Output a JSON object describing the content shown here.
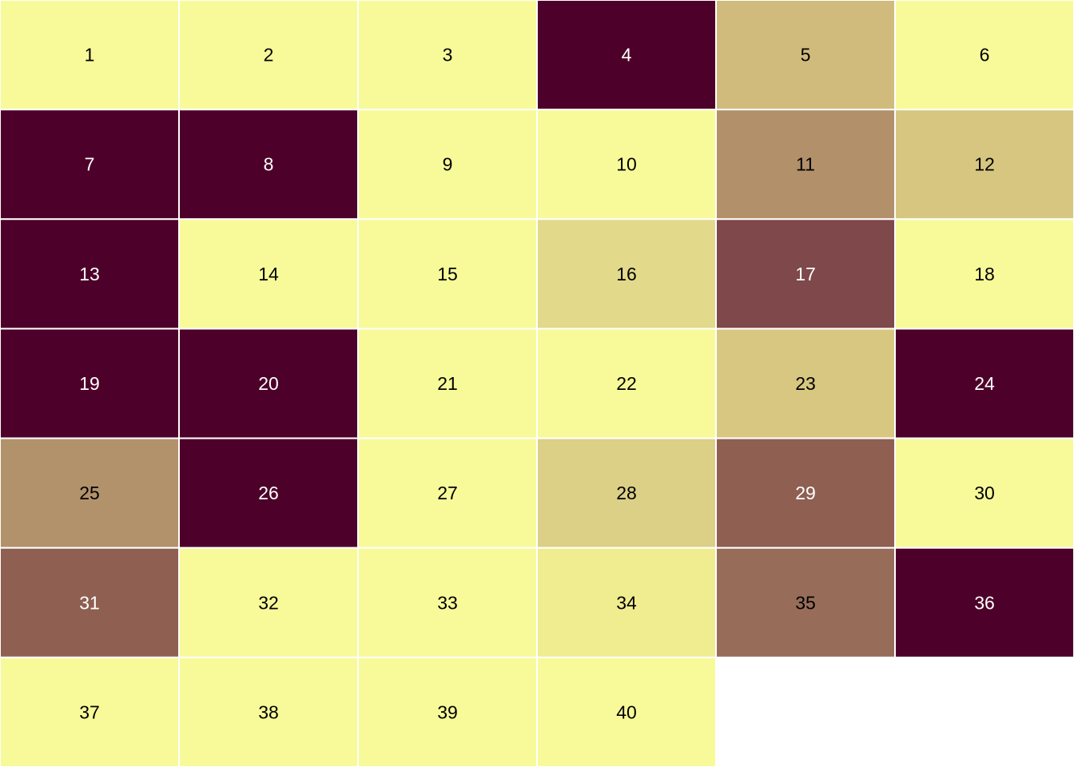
{
  "chart_data": {
    "type": "heatmap",
    "columns": 6,
    "colors": {
      "light": "#f8fa99",
      "dark": "#4d0029",
      "text_light": "#ffffff",
      "text_dark": "#000000",
      "grid_line": "#ffffff"
    },
    "cells": [
      {
        "label": "1",
        "color": "#f8fa99"
      },
      {
        "label": "2",
        "color": "#f8fa99"
      },
      {
        "label": "3",
        "color": "#f8fa99"
      },
      {
        "label": "4",
        "color": "#4d0029"
      },
      {
        "label": "5",
        "color": "#d0bb7c"
      },
      {
        "label": "6",
        "color": "#f8fa99"
      },
      {
        "label": "7",
        "color": "#4d0029"
      },
      {
        "label": "8",
        "color": "#4d0029"
      },
      {
        "label": "9",
        "color": "#f8fa99"
      },
      {
        "label": "10",
        "color": "#f8fa99"
      },
      {
        "label": "11",
        "color": "#b2906a"
      },
      {
        "label": "12",
        "color": "#d6c680"
      },
      {
        "label": "13",
        "color": "#4d0029"
      },
      {
        "label": "14",
        "color": "#f8fa99"
      },
      {
        "label": "15",
        "color": "#f8fa99"
      },
      {
        "label": "16",
        "color": "#e2d98a"
      },
      {
        "label": "17",
        "color": "#7f484a"
      },
      {
        "label": "18",
        "color": "#f8fa99"
      },
      {
        "label": "19",
        "color": "#4d0029"
      },
      {
        "label": "20",
        "color": "#4d0029"
      },
      {
        "label": "21",
        "color": "#f8fa99"
      },
      {
        "label": "22",
        "color": "#f8fa99"
      },
      {
        "label": "23",
        "color": "#d8c781"
      },
      {
        "label": "24",
        "color": "#4d0029"
      },
      {
        "label": "25",
        "color": "#b2926b"
      },
      {
        "label": "26",
        "color": "#4d0029"
      },
      {
        "label": "27",
        "color": "#f8fa99"
      },
      {
        "label": "28",
        "color": "#dccf86"
      },
      {
        "label": "29",
        "color": "#8f5f52"
      },
      {
        "label": "30",
        "color": "#f8fa99"
      },
      {
        "label": "31",
        "color": "#8f5f52"
      },
      {
        "label": "32",
        "color": "#f8fa99"
      },
      {
        "label": "33",
        "color": "#f8fa99"
      },
      {
        "label": "34",
        "color": "#f0ec90"
      },
      {
        "label": "35",
        "color": "#976d5a"
      },
      {
        "label": "36",
        "color": "#4d0029"
      },
      {
        "label": "37",
        "color": "#f8fa99"
      },
      {
        "label": "38",
        "color": "#f8fa99"
      },
      {
        "label": "39",
        "color": "#f8fa99"
      },
      {
        "label": "40",
        "color": "#f8fa99"
      }
    ]
  }
}
